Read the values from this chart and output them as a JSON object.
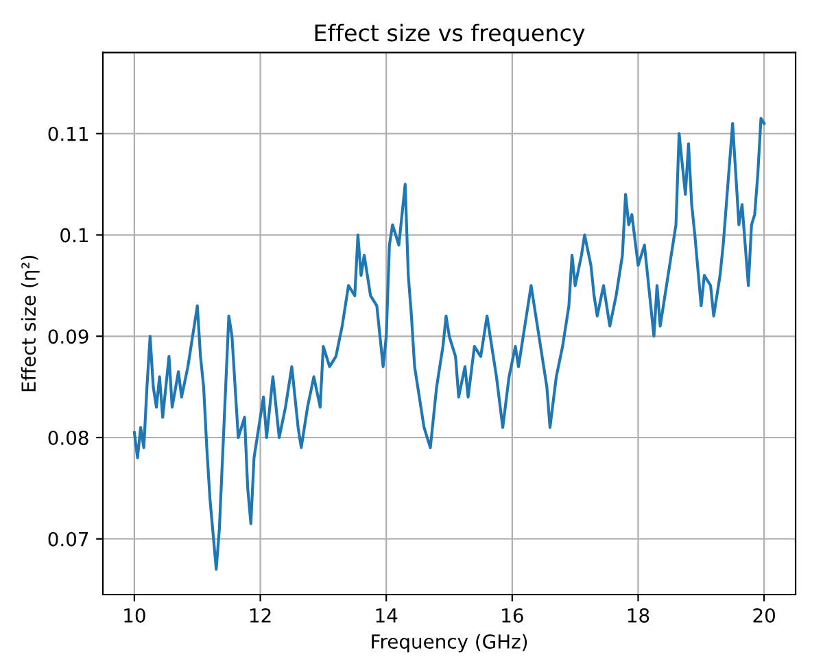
{
  "chart_data": {
    "type": "line",
    "title": "Effect size vs frequency",
    "xlabel": "Frequency (GHz)",
    "ylabel": "Effect size (η²)",
    "x": [
      10.0,
      10.05,
      10.1,
      10.15,
      10.2,
      10.25,
      10.3,
      10.35,
      10.4,
      10.45,
      10.55,
      10.6,
      10.7,
      10.75,
      10.85,
      10.95,
      11.0,
      11.05,
      11.1,
      11.15,
      11.2,
      11.3,
      11.35,
      11.45,
      11.5,
      11.55,
      11.65,
      11.75,
      11.8,
      11.85,
      11.9,
      12.0,
      12.05,
      12.1,
      12.2,
      12.3,
      12.4,
      12.5,
      12.6,
      12.65,
      12.75,
      12.85,
      12.95,
      13.0,
      13.1,
      13.2,
      13.3,
      13.4,
      13.5,
      13.55,
      13.6,
      13.65,
      13.75,
      13.85,
      13.9,
      13.95,
      14.0,
      14.05,
      14.1,
      14.2,
      14.3,
      14.35,
      14.4,
      14.45,
      14.55,
      14.6,
      14.7,
      14.8,
      14.9,
      14.95,
      15.0,
      15.1,
      15.15,
      15.25,
      15.3,
      15.4,
      15.5,
      15.6,
      15.7,
      15.75,
      15.85,
      15.95,
      16.05,
      16.1,
      16.2,
      16.3,
      16.35,
      16.45,
      16.55,
      16.6,
      16.7,
      16.8,
      16.9,
      16.95,
      17.0,
      17.1,
      17.15,
      17.25,
      17.3,
      17.35,
      17.45,
      17.55,
      17.65,
      17.75,
      17.8,
      17.85,
      17.9,
      18.0,
      18.1,
      18.2,
      18.25,
      18.3,
      18.35,
      18.45,
      18.55,
      18.6,
      18.65,
      18.75,
      18.8,
      18.85,
      18.9,
      19.0,
      19.05,
      19.15,
      19.2,
      19.3,
      19.35,
      19.45,
      19.5,
      19.55,
      19.6,
      19.65,
      19.75,
      19.8,
      19.85,
      19.9,
      19.95,
      20.0
    ],
    "series": [
      {
        "color": "#1f77b4",
        "values": [
          0.0805,
          0.078,
          0.081,
          0.079,
          0.085,
          0.09,
          0.085,
          0.083,
          0.086,
          0.082,
          0.088,
          0.083,
          0.0865,
          0.084,
          0.087,
          0.091,
          0.093,
          0.088,
          0.085,
          0.079,
          0.074,
          0.067,
          0.071,
          0.085,
          0.092,
          0.09,
          0.08,
          0.082,
          0.075,
          0.0715,
          0.078,
          0.082,
          0.084,
          0.08,
          0.086,
          0.08,
          0.083,
          0.087,
          0.081,
          0.079,
          0.083,
          0.086,
          0.083,
          0.089,
          0.087,
          0.088,
          0.091,
          0.095,
          0.094,
          0.1,
          0.096,
          0.098,
          0.094,
          0.093,
          0.09,
          0.087,
          0.09,
          0.099,
          0.101,
          0.099,
          0.105,
          0.096,
          0.092,
          0.087,
          0.083,
          0.081,
          0.079,
          0.085,
          0.089,
          0.092,
          0.09,
          0.088,
          0.084,
          0.087,
          0.084,
          0.089,
          0.088,
          0.092,
          0.088,
          0.086,
          0.081,
          0.086,
          0.089,
          0.087,
          0.091,
          0.095,
          0.093,
          0.089,
          0.085,
          0.081,
          0.086,
          0.089,
          0.093,
          0.098,
          0.095,
          0.098,
          0.1,
          0.097,
          0.094,
          0.092,
          0.095,
          0.091,
          0.094,
          0.098,
          0.104,
          0.101,
          0.102,
          0.097,
          0.099,
          0.093,
          0.09,
          0.095,
          0.091,
          0.095,
          0.099,
          0.101,
          0.11,
          0.104,
          0.109,
          0.103,
          0.1,
          0.093,
          0.096,
          0.095,
          0.092,
          0.096,
          0.099,
          0.107,
          0.111,
          0.106,
          0.101,
          0.103,
          0.095,
          0.101,
          0.102,
          0.106,
          0.1115,
          0.111
        ]
      }
    ],
    "xlim": [
      9.5,
      20.5
    ],
    "ylim": [
      0.0645,
      0.118
    ],
    "xticks": [
      10,
      12,
      14,
      16,
      18,
      20
    ],
    "yticks": [
      0.07,
      0.08,
      0.09,
      0.1,
      0.11
    ],
    "grid": true,
    "legend": false
  }
}
